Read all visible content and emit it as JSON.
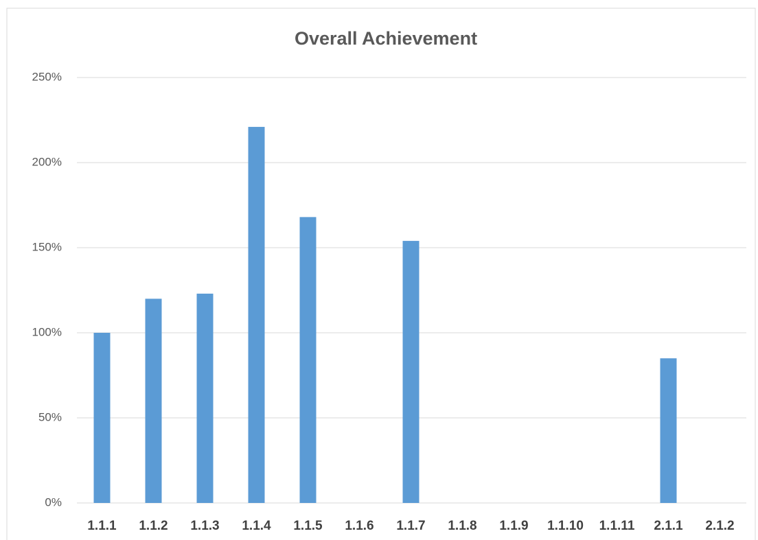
{
  "chart_data": {
    "type": "bar",
    "title": "Overall Achievement",
    "categories": [
      "1.1.1",
      "1.1.2",
      "1.1.3",
      "1.1.4",
      "1.1.5",
      "1.1.6",
      "1.1.7",
      "1.1.8",
      "1.1.9",
      "1.1.10",
      "1.1.11",
      "2.1.1",
      "2.1.2"
    ],
    "values": [
      100,
      120,
      123,
      221,
      168,
      null,
      154,
      null,
      null,
      null,
      null,
      85,
      null
    ],
    "color": "#5b9bd5",
    "ylim": [
      0,
      250
    ],
    "yticks": [
      {
        "value": 0,
        "label": "0%"
      },
      {
        "value": 50,
        "label": "50%"
      },
      {
        "value": 100,
        "label": "100%"
      },
      {
        "value": 150,
        "label": "150%"
      },
      {
        "value": 200,
        "label": "200%"
      },
      {
        "value": 250,
        "label": "250%"
      }
    ],
    "grid": true
  }
}
